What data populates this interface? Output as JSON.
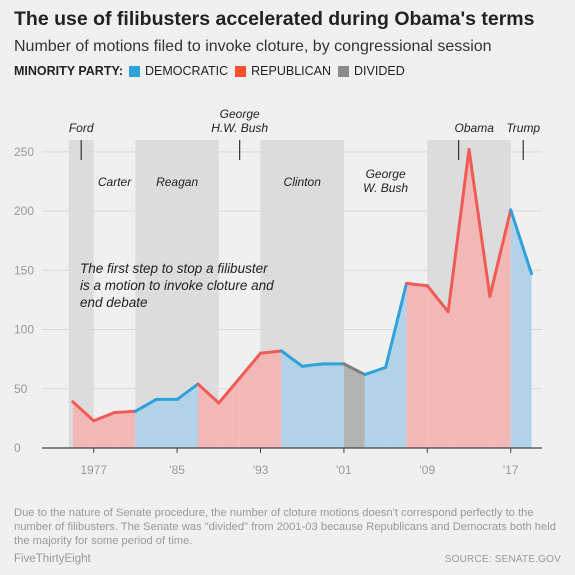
{
  "title": "The use of filibusters accelerated during Obama's terms",
  "subtitle": "Number of motions filed to invoke cloture, by congressional session",
  "legend": {
    "title": "MINORITY PARTY:",
    "items": [
      {
        "label": "DEMOCRATIC",
        "color": "#30a2da"
      },
      {
        "label": "REPUBLICAN",
        "color": "#fc4f30"
      },
      {
        "label": "DIVIDED",
        "color": "#8b8b8b"
      }
    ]
  },
  "annotation": "The first step to stop a filibuster is a motion to invoke cloture and end debate",
  "note": "Due to the nature of Senate procedure, the number of cloture motions doesn't correspond perfectly to the number of filibusters. The Senate was \"divided\" from 2001-03 because Republicans and Democrats both held the majority for some period of time.",
  "footer": {
    "brand": "FiveThirtyEight",
    "source": "SOURCE: SENATE.GOV"
  },
  "colors": {
    "democratic_fill": "#b2d2e8",
    "republican_fill": "#f2b8b8",
    "divided_fill": "#b3b3b3",
    "democratic_line": "#30a2da",
    "republican_line": "#f15b55",
    "divided_line": "#7f7f7f",
    "presidency_band": "#dcdcdc",
    "grid": "#d9d9d9"
  },
  "chart_data": {
    "type": "area",
    "xlim": [
      1973,
      2020
    ],
    "ylim": [
      0,
      260
    ],
    "y_ticks": [
      0,
      50,
      100,
      150,
      200,
      250
    ],
    "y_tick_labels": [
      "0",
      "50",
      "100",
      "150",
      "200",
      "250"
    ],
    "x_ticks": [
      1977,
      1985,
      1993,
      2001,
      2009,
      2017
    ],
    "x_tick_labels": [
      "1977",
      "'85",
      "'93",
      "'01",
      "'09",
      "'17"
    ],
    "sessions": [
      1975,
      1977,
      1979,
      1981,
      1983,
      1985,
      1987,
      1989,
      1991,
      1993,
      1995,
      1997,
      1999,
      2001,
      2003,
      2005,
      2007,
      2009,
      2011,
      2013,
      2015,
      2017,
      2019
    ],
    "values": [
      39,
      23,
      30,
      31,
      41,
      41,
      54,
      38,
      59,
      80,
      82,
      69,
      71,
      71,
      62,
      68,
      139,
      137,
      115,
      252,
      128,
      201,
      147
    ],
    "minority_party": [
      "R",
      "R",
      "R",
      "D",
      "D",
      "D",
      "R",
      "R",
      "R",
      "R",
      "D",
      "D",
      "D",
      "X",
      "D",
      "D",
      "R",
      "R",
      "R",
      "R",
      "R",
      "D",
      "D"
    ],
    "presidencies": [
      {
        "name": "Ford",
        "start": 1974.6,
        "end": 1977.0,
        "band": true,
        "label_lines": [
          "Ford"
        ],
        "tick": 1975.8
      },
      {
        "name": "Carter",
        "start": 1977.0,
        "end": 1981.0,
        "band": false,
        "label_lines": [
          "Carter"
        ]
      },
      {
        "name": "Reagan",
        "start": 1981.0,
        "end": 1989.0,
        "band": true,
        "label_lines": [
          "Reagan"
        ]
      },
      {
        "name": "George H.W. Bush",
        "start": 1989.0,
        "end": 1993.0,
        "band": false,
        "label_lines": [
          "George",
          "H.W. Bush"
        ],
        "tick": 1991.0
      },
      {
        "name": "Clinton",
        "start": 1993.0,
        "end": 2001.0,
        "band": true,
        "label_lines": [
          "Clinton"
        ]
      },
      {
        "name": "George W. Bush",
        "start": 2001.0,
        "end": 2009.0,
        "band": false,
        "label_lines": [
          "George",
          "W. Bush"
        ]
      },
      {
        "name": "Obama",
        "start": 2009.0,
        "end": 2017.0,
        "band": true,
        "label_lines": [
          "Obama"
        ],
        "tick": 2012.0
      },
      {
        "name": "Trump",
        "start": 2017.0,
        "end": 2019.5,
        "band": false,
        "label_lines": [
          "Trump"
        ],
        "tick": 2018.2
      }
    ]
  }
}
